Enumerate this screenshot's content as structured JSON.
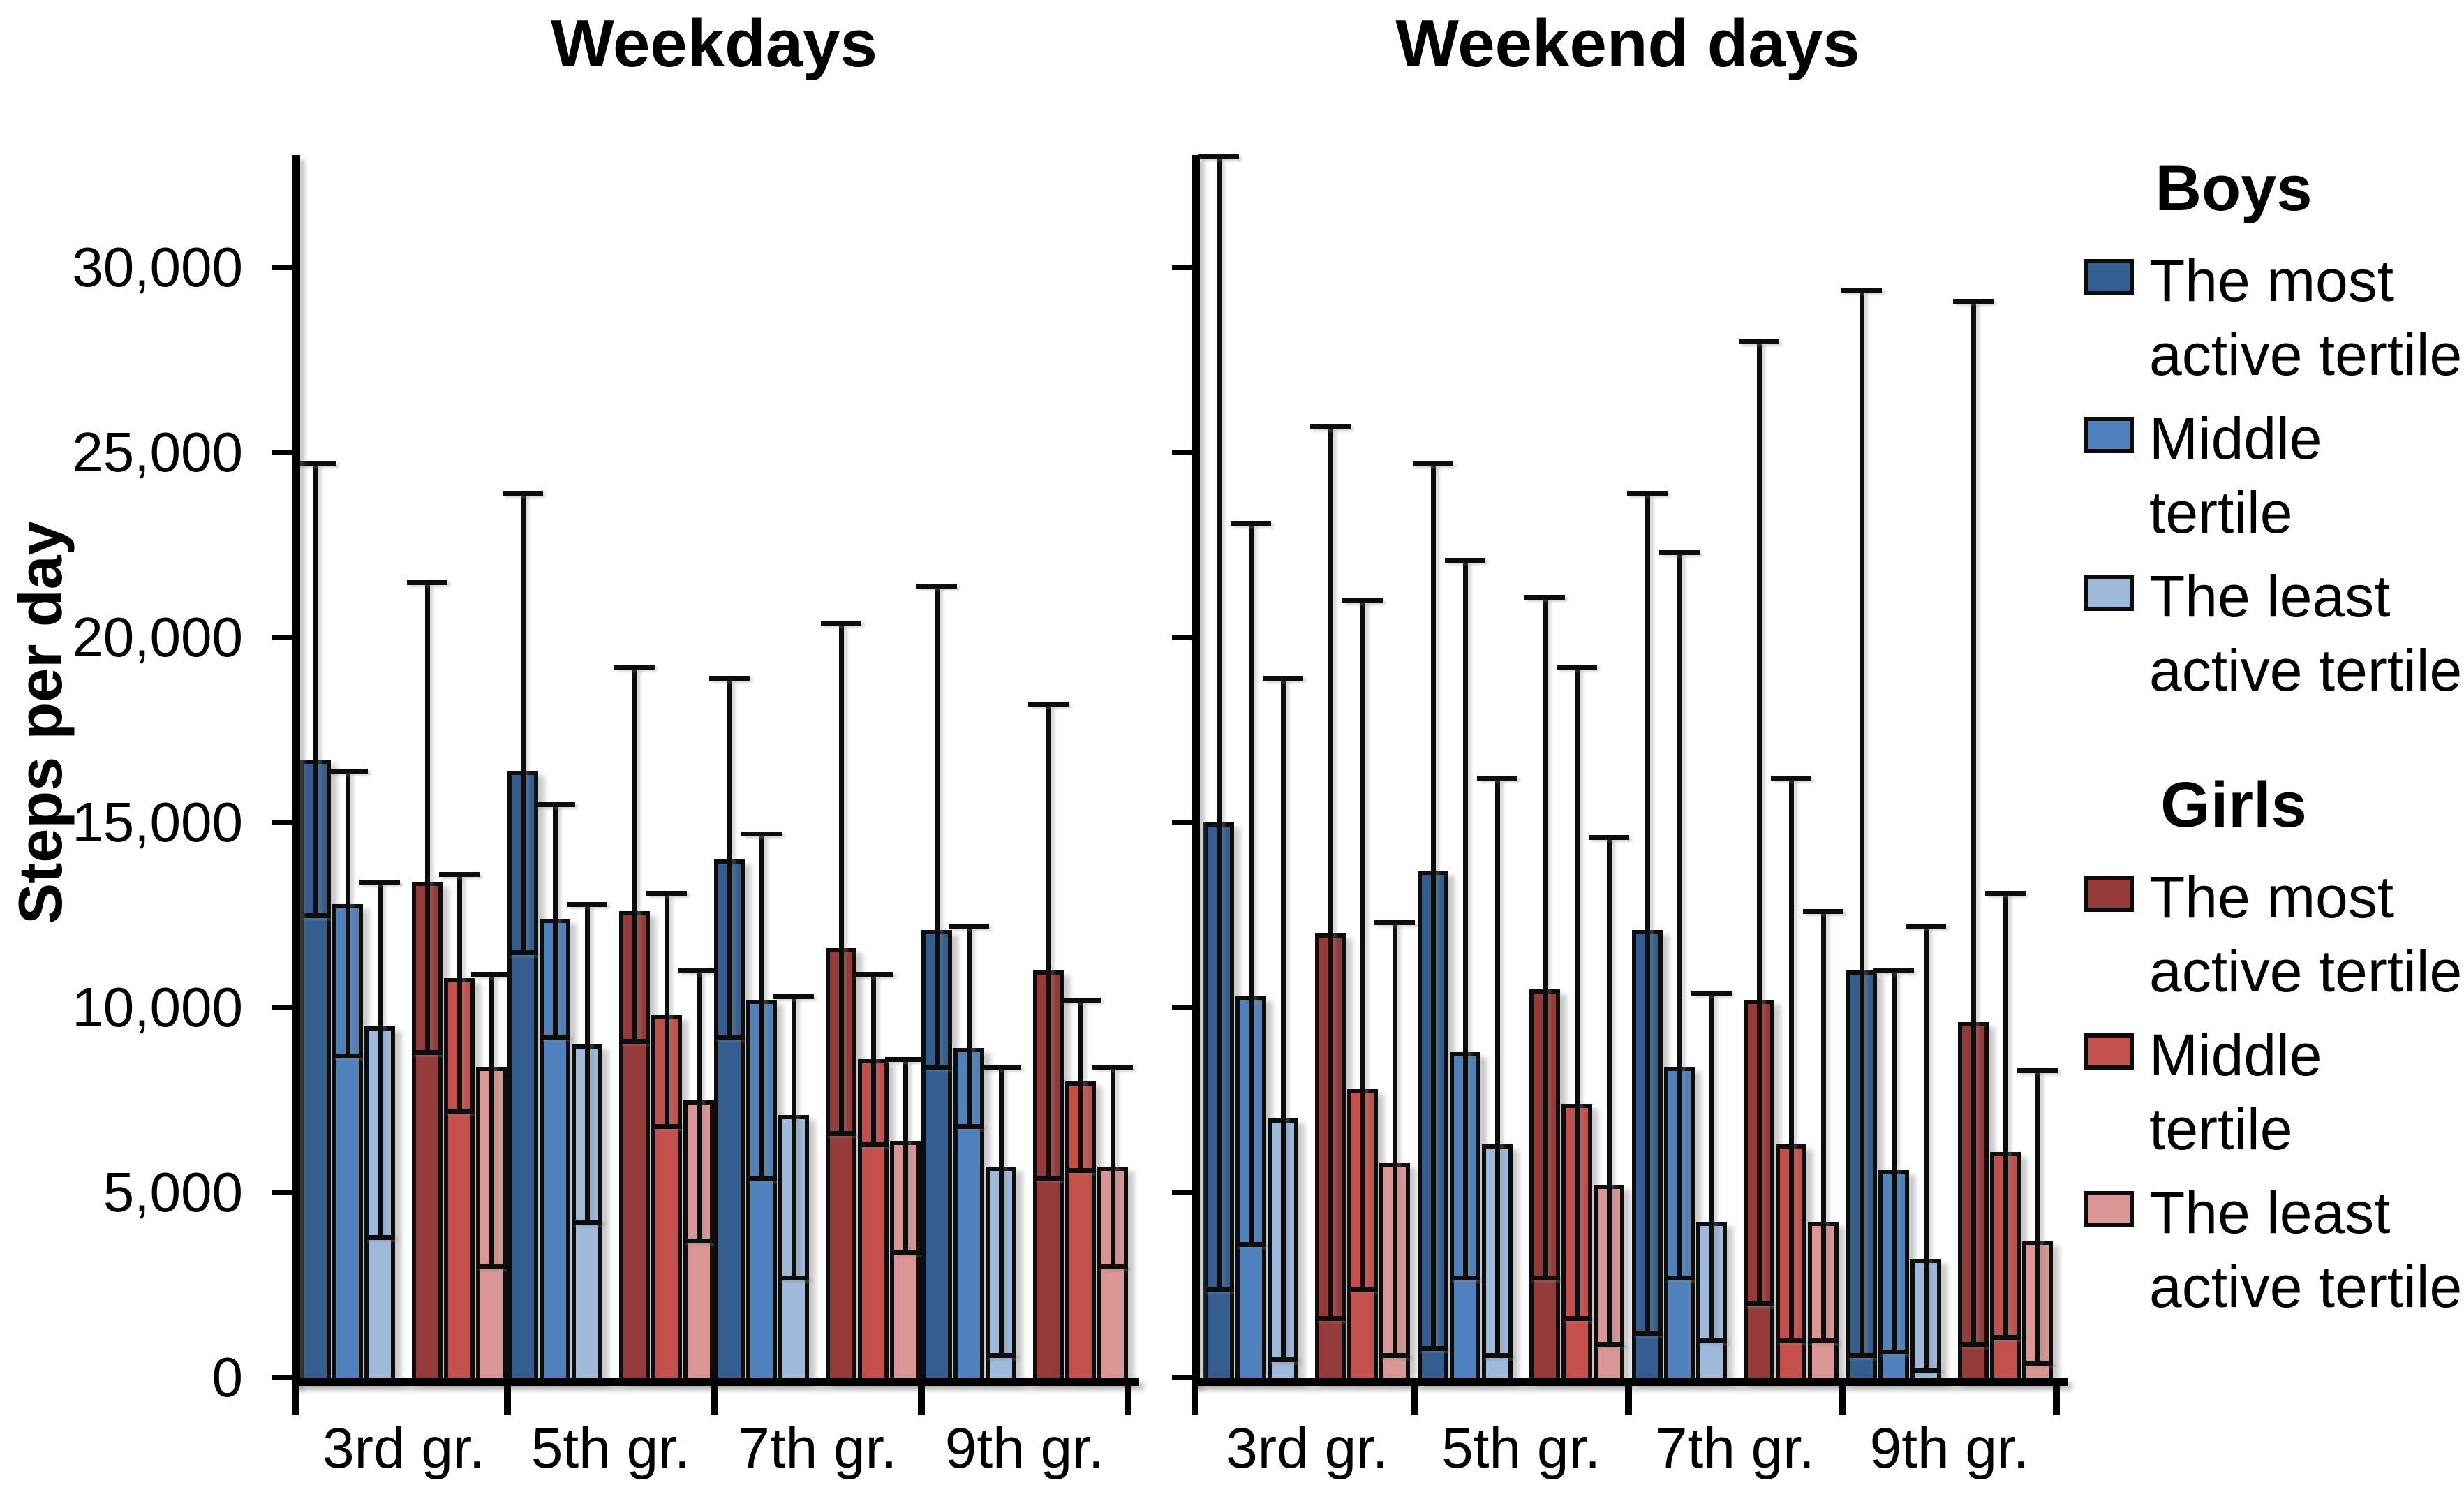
{
  "titles": {
    "left": "Weekdays",
    "right": "Weekend days"
  },
  "y_axis": {
    "label": "Steps per day",
    "tick_values": [
      0,
      5000,
      10000,
      15000,
      20000,
      25000,
      30000
    ],
    "tick_labels": [
      "0",
      "5,000",
      "10,000",
      "15,000",
      "20,000",
      "25,000",
      "30,000"
    ],
    "axis_max": 33000
  },
  "legend": {
    "boys_title": "Boys",
    "girls_title": "Girls",
    "boys_items": [
      {
        "id": "boys-most",
        "color": "dark_blue",
        "lines": [
          "The most",
          "active tertile"
        ]
      },
      {
        "id": "boys-middle",
        "color": "mid_blue",
        "lines": [
          "Middle",
          "tertile"
        ]
      },
      {
        "id": "boys-least",
        "color": "light_blue",
        "lines": [
          "The least",
          "active tertile"
        ]
      }
    ],
    "girls_items": [
      {
        "id": "girls-most",
        "color": "dark_red",
        "lines": [
          "The most",
          "active tertile"
        ]
      },
      {
        "id": "girls-middle",
        "color": "mid_red",
        "lines": [
          "Middle",
          "tertile"
        ]
      },
      {
        "id": "girls-least",
        "color": "light_red",
        "lines": [
          "The least",
          "active tertile"
        ]
      }
    ]
  },
  "colors": {
    "dark_blue": "#335E8F",
    "mid_blue": "#4F81BD",
    "light_blue": "#9FB9DB",
    "dark_red": "#943A38",
    "mid_red": "#C4504C",
    "light_red": "#D99694",
    "bar_border": "#0d0d0d"
  },
  "chart_data": [
    {
      "type": "bar",
      "title": "Weekdays",
      "ylabel": "Steps per day",
      "ylim": [
        0,
        33000
      ],
      "grid": false,
      "categories": [
        "3rd gr.",
        "5th gr.",
        "7th gr.",
        "9th gr."
      ],
      "series": [
        {
          "name": "Boys - The most active tertile",
          "color": "dark_blue",
          "values": [
            16700,
            16400,
            14000,
            12100
          ],
          "err_low": [
            12500,
            11500,
            9200,
            8400
          ],
          "err_high": [
            24700,
            23900,
            18900,
            21400
          ]
        },
        {
          "name": "Boys - Middle tertile",
          "color": "mid_blue",
          "values": [
            12800,
            12400,
            10200,
            8900
          ],
          "err_low": [
            8700,
            9200,
            5400,
            6800
          ],
          "err_high": [
            16400,
            15500,
            14700,
            12200
          ]
        },
        {
          "name": "Boys - The least active tertile",
          "color": "light_blue",
          "values": [
            9500,
            9000,
            7100,
            5700
          ],
          "err_low": [
            3800,
            4200,
            2700,
            600
          ],
          "err_high": [
            13400,
            12800,
            10300,
            8400
          ]
        },
        {
          "name": "Girls - The most active tertile",
          "color": "dark_red",
          "values": [
            13400,
            12600,
            11600,
            11000
          ],
          "err_low": [
            8800,
            9100,
            6600,
            5400
          ],
          "err_high": [
            21500,
            19200,
            20400,
            18200
          ]
        },
        {
          "name": "Girls - Middle tertile",
          "color": "mid_red",
          "values": [
            10800,
            9800,
            8600,
            8000
          ],
          "err_low": [
            7200,
            6800,
            6300,
            5600
          ],
          "err_high": [
            13600,
            13100,
            10900,
            10200
          ]
        },
        {
          "name": "Girls - The least active tertile",
          "color": "light_red",
          "values": [
            8400,
            7500,
            6400,
            5700
          ],
          "err_low": [
            3000,
            3700,
            3400,
            3000
          ],
          "err_high": [
            10900,
            11000,
            8600,
            8400
          ]
        }
      ]
    },
    {
      "type": "bar",
      "title": "Weekend days",
      "ylabel": "Steps per day",
      "ylim": [
        0,
        33000
      ],
      "grid": false,
      "categories": [
        "3rd gr.",
        "5th gr.",
        "7th gr.",
        "9th gr."
      ],
      "series": [
        {
          "name": "Boys - The most active tertile",
          "color": "dark_blue",
          "values": [
            15000,
            13700,
            12100,
            11000
          ],
          "err_low": [
            2400,
            800,
            1200,
            600
          ],
          "err_high": [
            33000,
            24700,
            23900,
            29400
          ]
        },
        {
          "name": "Boys - Middle tertile",
          "color": "mid_blue",
          "values": [
            10300,
            8800,
            8400,
            5600
          ],
          "err_low": [
            3600,
            2700,
            2700,
            700
          ],
          "err_high": [
            23100,
            22100,
            22300,
            11000
          ]
        },
        {
          "name": "Boys - The least active tertile",
          "color": "light_blue",
          "values": [
            7000,
            6300,
            4200,
            3200
          ],
          "err_low": [
            500,
            600,
            1000,
            200
          ],
          "err_high": [
            18900,
            16200,
            10400,
            12200
          ]
        },
        {
          "name": "Girls - The most active tertile",
          "color": "dark_red",
          "values": [
            12000,
            10500,
            10200,
            9600
          ],
          "err_low": [
            1600,
            2700,
            2000,
            900
          ],
          "err_high": [
            25700,
            21100,
            28000,
            29100
          ]
        },
        {
          "name": "Girls - Middle tertile",
          "color": "mid_red",
          "values": [
            7800,
            7400,
            6300,
            6100
          ],
          "err_low": [
            2400,
            1600,
            1000,
            1100
          ],
          "err_high": [
            21000,
            19200,
            16200,
            13100
          ]
        },
        {
          "name": "Girls - The least active tertile",
          "color": "light_red",
          "values": [
            5800,
            5200,
            4200,
            3700
          ],
          "err_low": [
            600,
            900,
            1000,
            400
          ],
          "err_high": [
            12300,
            14600,
            12600,
            8300
          ]
        }
      ]
    }
  ]
}
